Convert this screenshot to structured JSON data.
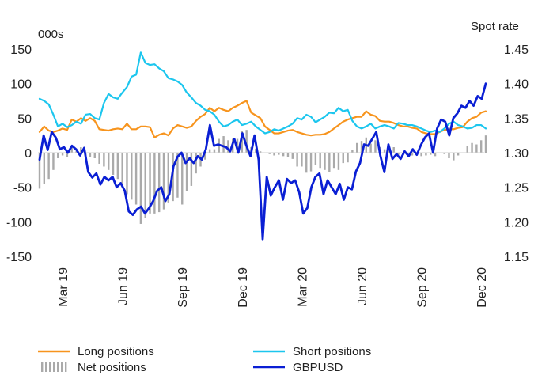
{
  "chart_data": {
    "type": "line",
    "left_axis_label": "000s",
    "right_axis_label": "Spot rate",
    "left_ylim": [
      -150,
      150
    ],
    "left_ticks": [
      150,
      100,
      50,
      0,
      -50,
      -100,
      -150
    ],
    "left_tick_labels": [
      "150",
      "100",
      "50",
      "0",
      "-50",
      "-100",
      "-150"
    ],
    "right_ylim": [
      1.15,
      1.45
    ],
    "right_ticks": [
      1.45,
      1.4,
      1.35,
      1.3,
      1.25,
      1.2,
      1.15
    ],
    "right_tick_labels": [
      "1.45",
      "1.40",
      "1.35",
      "1.30",
      "1.25",
      "1.20",
      "1.15"
    ],
    "x_tick_labels": [
      "Mar 19",
      "Jun 19",
      "Sep 19",
      "Dec 19",
      "Mar 20",
      "Jun 20",
      "Sep 20",
      "Dec 20"
    ],
    "x_tick_index": [
      5,
      18,
      31,
      44,
      57,
      70,
      83,
      96
    ],
    "grid": false,
    "legend_position": "bottom",
    "series": [
      {
        "name": "Long positions",
        "axis": "left",
        "kind": "line",
        "color": "#F7941D",
        "values": [
          30,
          38,
          32,
          30,
          32,
          35,
          33,
          48,
          45,
          50,
          46,
          50,
          46,
          34,
          33,
          32,
          34,
          35,
          34,
          42,
          34,
          34,
          38,
          38,
          37,
          22,
          26,
          28,
          25,
          35,
          40,
          38,
          36,
          38,
          46,
          52,
          56,
          65,
          60,
          65,
          62,
          60,
          65,
          68,
          72,
          75,
          58,
          54,
          50,
          38,
          33,
          28,
          28,
          30,
          32,
          33,
          30,
          28,
          26,
          25,
          26,
          26,
          27,
          30,
          35,
          40,
          45,
          48,
          50,
          52,
          52,
          60,
          55,
          53,
          46,
          45,
          45,
          43,
          40,
          38,
          38,
          36,
          35,
          30,
          28,
          27,
          27,
          30,
          33,
          34,
          34,
          36,
          37,
          45,
          50,
          52,
          58,
          60
        ]
      },
      {
        "name": "Short positions",
        "axis": "left",
        "kind": "line",
        "color": "#1CC6EE",
        "values": [
          78,
          75,
          70,
          55,
          38,
          42,
          37,
          40,
          45,
          42,
          55,
          56,
          50,
          48,
          72,
          85,
          80,
          78,
          87,
          95,
          110,
          113,
          145,
          130,
          127,
          128,
          122,
          118,
          108,
          106,
          103,
          98,
          87,
          80,
          72,
          68,
          62,
          60,
          55,
          45,
          38,
          40,
          45,
          48,
          40,
          42,
          45,
          38,
          33,
          28,
          30,
          34,
          32,
          35,
          38,
          42,
          50,
          48,
          55,
          52,
          44,
          48,
          52,
          58,
          57,
          65,
          60,
          62,
          46,
          38,
          35,
          38,
          42,
          35,
          38,
          40,
          38,
          35,
          43,
          42,
          40,
          40,
          38,
          35,
          32,
          30,
          32,
          30,
          35,
          42,
          45,
          40,
          38,
          35,
          36,
          40,
          40,
          35
        ]
      },
      {
        "name": "Net positions",
        "axis": "left",
        "kind": "bar",
        "color": "#AAAAAA",
        "values": [
          -52,
          -45,
          -38,
          -25,
          -8,
          -4,
          -6,
          8,
          2,
          8,
          -8,
          -6,
          -8,
          -16,
          -20,
          -25,
          -32,
          -38,
          -50,
          -60,
          -68,
          -75,
          -103,
          -95,
          -88,
          -88,
          -86,
          -82,
          -72,
          -70,
          -65,
          -75,
          -55,
          -48,
          -30,
          -20,
          -10,
          5,
          5,
          20,
          24,
          18,
          20,
          20,
          32,
          33,
          8,
          6,
          2,
          0,
          -2,
          -4,
          -3,
          -5,
          -6,
          -9,
          -20,
          -20,
          -29,
          -27,
          -18,
          -22,
          -25,
          -28,
          -22,
          -25,
          -15,
          -14,
          4,
          14,
          17,
          22,
          13,
          18,
          8,
          5,
          7,
          8,
          -3,
          -4,
          -2,
          -4,
          -3,
          -5,
          -4,
          -3,
          -5,
          0,
          -2,
          -8,
          -11,
          -4,
          -1,
          10,
          14,
          12,
          18,
          25
        ]
      },
      {
        "name": "GBPUSD",
        "axis": "right",
        "kind": "line",
        "color": "#0A1FD4",
        "values": [
          1.29,
          1.325,
          1.304,
          1.33,
          1.322,
          1.305,
          1.308,
          1.3,
          1.31,
          1.305,
          1.296,
          1.307,
          1.272,
          1.264,
          1.27,
          1.254,
          1.265,
          1.26,
          1.265,
          1.25,
          1.256,
          1.245,
          1.215,
          1.21,
          1.218,
          1.222,
          1.212,
          1.22,
          1.23,
          1.245,
          1.25,
          1.23,
          1.24,
          1.28,
          1.294,
          1.3,
          1.285,
          1.292,
          1.285,
          1.295,
          1.29,
          1.305,
          1.34,
          1.31,
          1.312,
          1.31,
          1.308,
          1.302,
          1.32,
          1.3,
          1.328,
          1.31,
          1.295,
          1.325,
          1.29,
          1.175,
          1.265,
          1.238,
          1.25,
          1.26,
          1.232,
          1.262,
          1.256,
          1.26,
          1.243,
          1.212,
          1.22,
          1.25,
          1.265,
          1.27,
          1.24,
          1.26,
          1.25,
          1.24,
          1.255,
          1.232,
          1.25,
          1.247,
          1.273,
          1.285,
          1.312,
          1.31,
          1.32,
          1.33,
          1.296,
          1.272,
          1.312,
          1.291,
          1.298,
          1.291,
          1.302,
          1.295,
          1.305,
          1.297,
          1.311,
          1.322,
          1.328,
          1.3,
          1.335,
          1.348,
          1.345,
          1.325,
          1.35,
          1.357,
          1.368,
          1.365,
          1.375,
          1.368,
          1.382,
          1.378,
          1.4
        ]
      }
    ]
  },
  "legend": {
    "long": "Long positions",
    "short": "Short positions",
    "net": "Net positions",
    "gbpusd": "GBPUSD"
  }
}
